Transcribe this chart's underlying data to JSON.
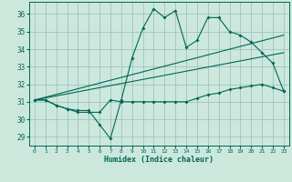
{
  "background_color": "#cce8dd",
  "grid_color": "#99bbbb",
  "line_color": "#006655",
  "xlabel": "Humidex (Indice chaleur)",
  "xlim": [
    -0.5,
    23.5
  ],
  "ylim": [
    28.5,
    36.7
  ],
  "yticks": [
    29,
    30,
    31,
    32,
    33,
    34,
    35,
    36
  ],
  "xticks": [
    0,
    1,
    2,
    3,
    4,
    5,
    6,
    7,
    8,
    9,
    10,
    11,
    12,
    13,
    14,
    15,
    16,
    17,
    18,
    19,
    20,
    21,
    22,
    23
  ],
  "curve_x": [
    0,
    1,
    2,
    3,
    4,
    5,
    6,
    7,
    8,
    9,
    10,
    11,
    12,
    13,
    14,
    15,
    16,
    17,
    18,
    19,
    20,
    21,
    22,
    23
  ],
  "curve_y": [
    31.1,
    31.1,
    30.8,
    30.6,
    30.5,
    30.5,
    29.7,
    28.9,
    31.1,
    33.5,
    35.2,
    36.3,
    35.8,
    36.2,
    34.1,
    34.5,
    35.8,
    35.8,
    35.0,
    34.8,
    34.4,
    33.8,
    33.2,
    31.6
  ],
  "flat_x": [
    0,
    1,
    2,
    3,
    4,
    5,
    6,
    7,
    8,
    9,
    10,
    11,
    12,
    13,
    14,
    15,
    16,
    17,
    18,
    19,
    20,
    21,
    22,
    23
  ],
  "flat_y": [
    31.1,
    31.1,
    30.8,
    30.6,
    30.4,
    30.4,
    30.4,
    31.1,
    31.0,
    31.0,
    31.0,
    31.0,
    31.0,
    31.0,
    31.0,
    31.2,
    31.4,
    31.5,
    31.7,
    31.8,
    31.9,
    32.0,
    31.8,
    31.6
  ],
  "trend1_x": [
    0,
    23
  ],
  "trend1_y": [
    31.1,
    34.8
  ],
  "trend2_x": [
    0,
    23
  ],
  "trend2_y": [
    31.1,
    33.8
  ]
}
